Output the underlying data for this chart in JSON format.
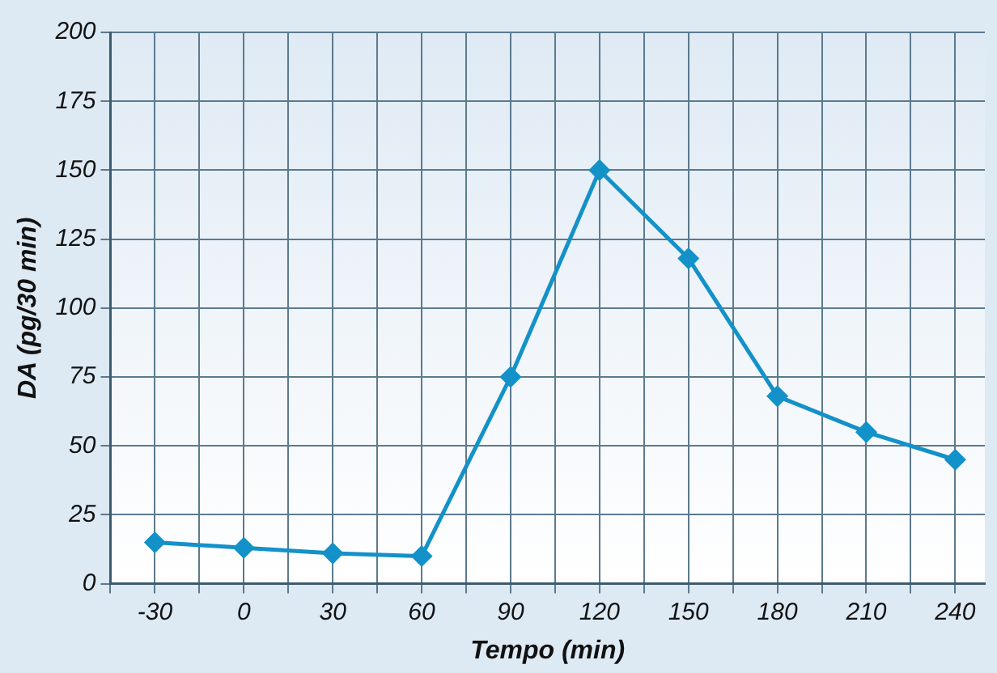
{
  "chart_data": {
    "type": "line",
    "xlabel": "Tempo (min)",
    "ylabel": "DA (pg/30 min)",
    "x": [
      -30,
      0,
      30,
      60,
      90,
      120,
      150,
      180,
      210,
      240
    ],
    "series": [
      {
        "color": "#1391c9",
        "values": [
          15,
          13,
          11,
          10,
          75,
          150,
          118,
          68,
          55,
          45
        ]
      }
    ],
    "xlim": [
      -45,
      250
    ],
    "xticks": [
      {
        "value": -45,
        "label": null
      },
      -30,
      {
        "value": -15,
        "label": null
      },
      0,
      {
        "value": 15,
        "label": null
      },
      30,
      {
        "value": 45,
        "label": null
      },
      60,
      {
        "value": 75,
        "label": null
      },
      90,
      {
        "value": 105,
        "label": null
      },
      120,
      {
        "value": 135,
        "label": null
      },
      150,
      {
        "value": 165,
        "label": null
      },
      180,
      {
        "value": 195,
        "label": null
      },
      210,
      {
        "value": 225,
        "label": null
      },
      240
    ],
    "ylim": [
      0,
      200
    ],
    "yticks": [
      0,
      25,
      50,
      75,
      100,
      125,
      150,
      175,
      200
    ],
    "grid": true,
    "legend": false,
    "marker": "diamond",
    "line_style": "solid"
  }
}
